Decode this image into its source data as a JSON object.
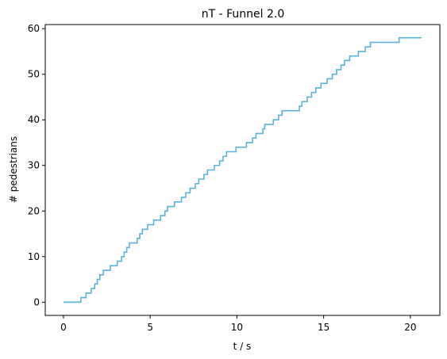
{
  "chart_data": {
    "type": "line",
    "title": "nT - Funnel 2.0",
    "xlabel": "t / s",
    "ylabel": "# pedestrians",
    "xlim": [
      -1.05,
      21.7
    ],
    "ylim": [
      -2.9,
      60.9
    ],
    "xticks": [
      0,
      5,
      10,
      15,
      20
    ],
    "yticks": [
      0,
      10,
      20,
      30,
      40,
      50,
      60
    ],
    "xtick_labels": [
      "0",
      "5",
      "10",
      "15",
      "20"
    ],
    "ytick_labels": [
      "0",
      "10",
      "20",
      "30",
      "40",
      "50",
      "60"
    ],
    "grid": false,
    "step": "post",
    "series": [
      {
        "color": "#5ab4d6",
        "x": [
          0,
          1.0,
          1.3,
          1.6,
          1.8,
          1.95,
          2.1,
          2.3,
          2.7,
          3.1,
          3.35,
          3.5,
          3.65,
          3.8,
          4.25,
          4.4,
          4.55,
          4.85,
          5.2,
          5.6,
          5.85,
          6.0,
          6.4,
          6.8,
          7.05,
          7.3,
          7.6,
          7.8,
          8.1,
          8.3,
          8.7,
          9.0,
          9.2,
          9.4,
          9.95,
          10.55,
          10.9,
          11.1,
          11.5,
          11.6,
          12.1,
          12.4,
          12.6,
          13.6,
          13.75,
          14.05,
          14.3,
          14.55,
          14.85,
          15.2,
          15.5,
          15.75,
          16.0,
          16.2,
          16.5,
          17.0,
          17.4,
          17.7,
          18.5,
          19.35,
          20.65
        ],
        "y": [
          0,
          1,
          2,
          3,
          4,
          5,
          6,
          7,
          8,
          9,
          10,
          11,
          12,
          13,
          14,
          15,
          16,
          17,
          18,
          19,
          20,
          21,
          22,
          23,
          24,
          25,
          26,
          27,
          28,
          29,
          30,
          31,
          32,
          33,
          34,
          35,
          36,
          37,
          38,
          39,
          40,
          41,
          42,
          43,
          44,
          45,
          46,
          47,
          48,
          49,
          50,
          51,
          52,
          53,
          54,
          55,
          56,
          57,
          57,
          58,
          58
        ]
      }
    ]
  }
}
